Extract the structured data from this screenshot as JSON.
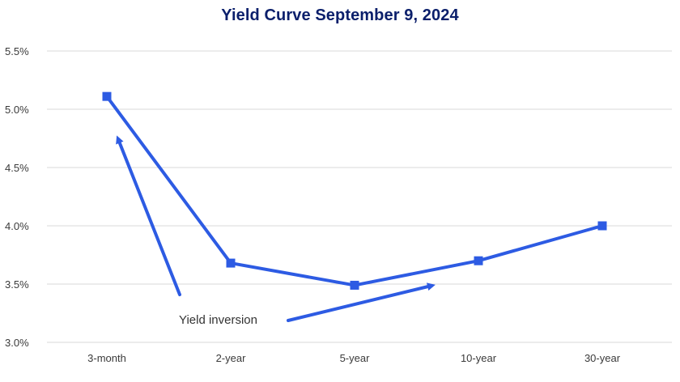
{
  "chart_data": {
    "type": "line",
    "title": "Yield Curve September 9, 2024",
    "xlabel": "",
    "ylabel": "",
    "categories": [
      "3-month",
      "2-year",
      "5-year",
      "10-year",
      "30-year"
    ],
    "series": [
      {
        "values": [
          5.11,
          3.68,
          3.49,
          3.7,
          4.0
        ]
      }
    ],
    "ylim": [
      3.0,
      5.5
    ],
    "yticks": [
      3.0,
      3.5,
      4.0,
      4.5,
      5.0,
      5.5
    ],
    "ytick_labels": [
      "3.0%",
      "3.5%",
      "4.0%",
      "4.5%",
      "5.0%",
      "5.5%"
    ],
    "grid": "horizontal",
    "annotations": [
      {
        "text": "Yield inversion"
      }
    ],
    "colors": {
      "series": "#2d5be3",
      "title": "#0b1f6b",
      "grid": "#d9d9d9"
    }
  }
}
